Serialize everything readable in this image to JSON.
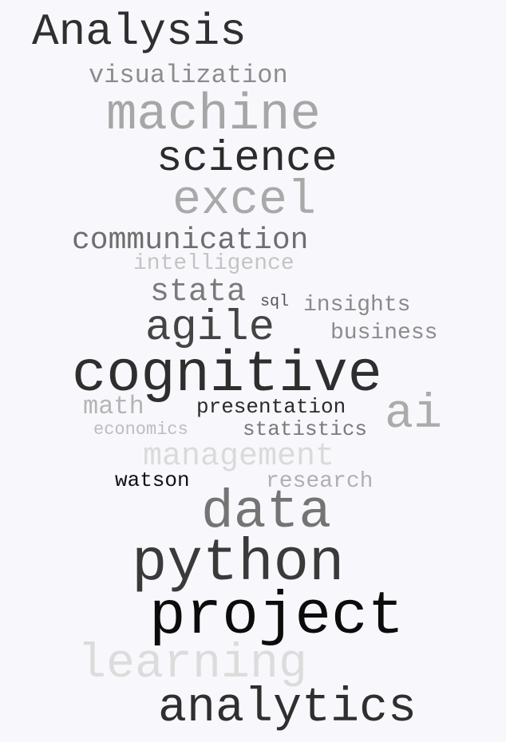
{
  "words": [
    {
      "id": "analysis",
      "text": "Analysis",
      "color": "#2f2f2f"
    },
    {
      "id": "visualization",
      "text": "visualization",
      "color": "#8c8c8c"
    },
    {
      "id": "machine",
      "text": "machine",
      "color": "#a6a6a6"
    },
    {
      "id": "science",
      "text": "science",
      "color": "#2b2b2b"
    },
    {
      "id": "excel",
      "text": "excel",
      "color": "#a9a9a9"
    },
    {
      "id": "communication",
      "text": "communication",
      "color": "#6e6e6e"
    },
    {
      "id": "intelligence",
      "text": "intelligence",
      "color": "#c4c4c4"
    },
    {
      "id": "stata",
      "text": "stata",
      "color": "#7a7a7a"
    },
    {
      "id": "sql",
      "text": "sql",
      "color": "#555555"
    },
    {
      "id": "insights",
      "text": "insights",
      "color": "#8a8a8a"
    },
    {
      "id": "agile",
      "text": "agile",
      "color": "#444444"
    },
    {
      "id": "business",
      "text": "business",
      "color": "#8c8c8c"
    },
    {
      "id": "cognitive",
      "text": "cognitive",
      "color": "#2e2e2e"
    },
    {
      "id": "math",
      "text": "math",
      "color": "#b5b5b5"
    },
    {
      "id": "presentation",
      "text": "presentation",
      "color": "#2a2a2a"
    },
    {
      "id": "ai",
      "text": "ai",
      "color": "#ababab"
    },
    {
      "id": "economics",
      "text": "economics",
      "color": "#bdbdbd"
    },
    {
      "id": "statistics",
      "text": "statistics",
      "color": "#7a7a7a"
    },
    {
      "id": "management",
      "text": "management",
      "color": "#dadada"
    },
    {
      "id": "watson",
      "text": "watson",
      "color": "#111111"
    },
    {
      "id": "research",
      "text": "research",
      "color": "#b0b0b0"
    },
    {
      "id": "data",
      "text": "data",
      "color": "#747474"
    },
    {
      "id": "python",
      "text": "python",
      "color": "#3a3a3a"
    },
    {
      "id": "project",
      "text": "project",
      "color": "#0c0c0c"
    },
    {
      "id": "learning",
      "text": "learning",
      "color": "#dcdcdc"
    },
    {
      "id": "analytics",
      "text": "analytics",
      "color": "#2f2f2f"
    }
  ]
}
